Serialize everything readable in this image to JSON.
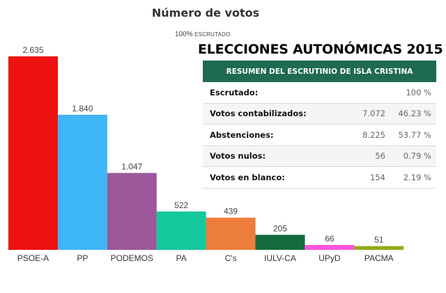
{
  "chart_data": {
    "type": "bar",
    "title": "Número de votos",
    "subtitle_pct": "100%",
    "subtitle_label": "ESCRUTADO",
    "categories": [
      "PSOE-A",
      "PP",
      "PODEMOS",
      "PA",
      "C's",
      "IULV-CA",
      "UPyD",
      "PACMA"
    ],
    "values": [
      2635,
      1840,
      1047,
      522,
      439,
      205,
      66,
      51
    ],
    "value_labels": [
      "2.635",
      "1.840",
      "1.047",
      "522",
      "439",
      "205",
      "66",
      "51"
    ],
    "colors": [
      "#ee1111",
      "#3fb6f6",
      "#9b579a",
      "#15c89e",
      "#ed7d3a",
      "#136b3c",
      "#ff55dd",
      "#91aa1a"
    ],
    "ylim": [
      0,
      2635
    ],
    "grid": false
  },
  "heading": "ELECCIONES AUTONÓMICAS 2015",
  "summary": {
    "header": "RESUMEN DEL ESCRUTINIO DE ISLA CRISTINA",
    "rows": [
      {
        "label": "Escrutado:",
        "value": "100 %"
      },
      {
        "label": "Votos contabilizados:",
        "value": "7.072",
        "pct": "46.23 %"
      },
      {
        "label": "Abstenciones:",
        "value": "8.225",
        "pct": "53.77 %"
      },
      {
        "label": "Votos nulos:",
        "value": "56",
        "pct": "0.79 %"
      },
      {
        "label": "Votos en blanco:",
        "value": "154",
        "pct": "2.19 %"
      }
    ]
  }
}
